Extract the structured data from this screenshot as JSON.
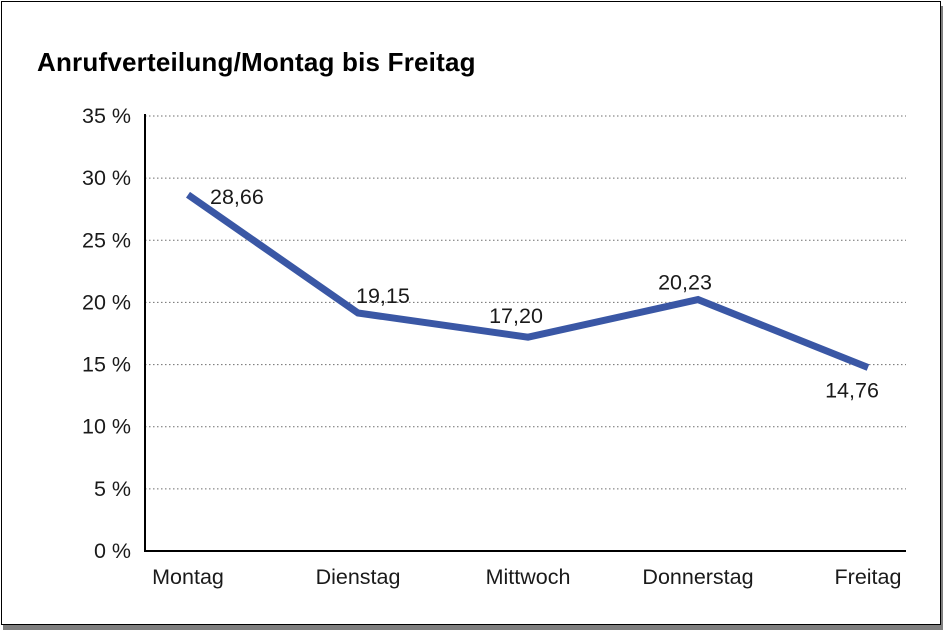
{
  "chart_data": {
    "type": "line",
    "title": "Anrufverteilung/Montag bis Freitag",
    "categories": [
      "Montag",
      "Dienstag",
      "Mittwoch",
      "Donnerstag",
      "Freitag"
    ],
    "values": [
      28.66,
      19.15,
      17.2,
      20.23,
      14.76
    ],
    "value_labels": [
      "28,66",
      "19,15",
      "17,20",
      "20,23",
      "14,76"
    ],
    "xlabel": "",
    "ylabel": "",
    "ylim": [
      0,
      35
    ],
    "ytick_step": 5,
    "ytick_labels": [
      "0 %",
      "5 %",
      "10 %",
      "15 %",
      "20 %",
      "25 %",
      "30 %",
      "35 %"
    ],
    "grid": "horizontal-dotted",
    "legend_position": "none",
    "line_color": "#3a57a5",
    "grid_color": "#6e6e6e",
    "axis_color": "#000000",
    "label_color": "#1a1a1a"
  }
}
